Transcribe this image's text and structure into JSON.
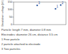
{
  "chart_data": {
    "type": "scatter",
    "y_label": "Breakdown voltage (kV)",
    "x": [
      3.2,
      3.6,
      1.8
    ],
    "values": [
      105,
      130,
      128
    ],
    "labels": [
      "1",
      "2",
      "3"
    ],
    "xlim": [
      0,
      4
    ],
    "ylim": [
      0,
      150
    ],
    "yticks": [
      0,
      50,
      100,
      150
    ],
    "tick_labels": "y",
    "color": "#1f4e9a",
    "marker": "square",
    "notes": [
      "Particle: length 7 mm, diameter 0.8 mm",
      "Electrodes: diameter 26 cm, distance 3.5 cm",
      "1 Free particle",
      "2 particle attached to electrode",
      "3 Two particles"
    ]
  }
}
